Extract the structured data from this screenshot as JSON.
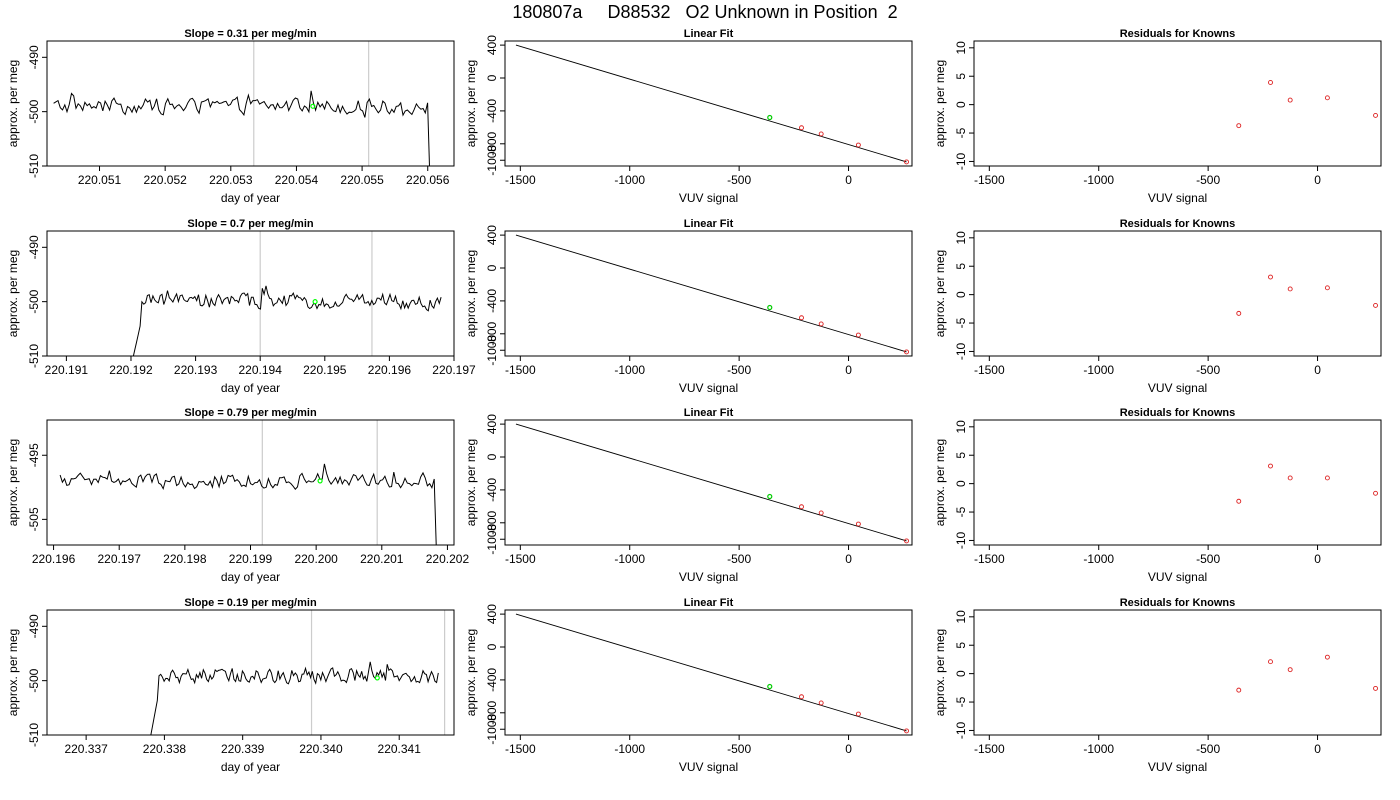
{
  "figure": {
    "title": "180807a     D88532   O2 Unknown in Position  2"
  },
  "chart_data": [
    {
      "type": "line",
      "row": 1,
      "title": "Slope =  0.31  per meg/min",
      "xlabel": "day of year",
      "ylabel": "approx. per meg",
      "xlim": [
        220.0502,
        220.0564
      ],
      "ylim": [
        -510,
        -487
      ],
      "xticks": [
        220.051,
        220.052,
        220.053,
        220.054,
        220.055,
        220.056
      ],
      "xtick_labels": [
        "220.051",
        "220.052",
        "220.053",
        "220.054",
        "220.055",
        "220.056"
      ],
      "yticks": [
        -510,
        -500,
        -490
      ],
      "ytick_labels": [
        "-510",
        "-500",
        "-490"
      ],
      "data_start": 220.0503,
      "data_end": 220.0561,
      "baseline": -499,
      "final_value": -512,
      "vlines": [
        220.05335,
        220.0551
      ],
      "marker": {
        "x": 220.05425,
        "y": -499,
        "color": "#00ff00"
      }
    },
    {
      "type": "scatter",
      "row": 1,
      "title": "Linear Fit",
      "xlabel": "VUV signal",
      "ylabel": "approx. per meg",
      "xlim": [
        -1570,
        290
      ],
      "ylim": [
        -1070,
        450
      ],
      "xticks": [
        -1500,
        -1000,
        -500,
        0
      ],
      "xtick_labels": [
        "-1500",
        "-1000",
        "-500",
        "0"
      ],
      "yticks": [
        -1000,
        -800,
        -400,
        0,
        400
      ],
      "ytick_labels": [
        "-1000",
        "-800",
        "-400",
        "0",
        "400"
      ],
      "line": {
        "x": [
          -1520,
          265
        ],
        "y": [
          400,
          -1020
        ]
      },
      "points": {
        "x": [
          -215,
          -125,
          45,
          265
        ],
        "y": [
          -605,
          -680,
          -815,
          -1020
        ],
        "color": "#dd2222"
      },
      "highlight": {
        "x": [
          -360
        ],
        "y": [
          -480
        ],
        "color": "#00cc00"
      }
    },
    {
      "type": "scatter",
      "row": 1,
      "title": "Residuals for Knowns",
      "xlabel": "VUV signal",
      "ylabel": "approx. per meg",
      "xlim": [
        -1570,
        290
      ],
      "ylim": [
        -10.8,
        11.2
      ],
      "xticks": [
        -1500,
        -1000,
        -500,
        0
      ],
      "xtick_labels": [
        "-1500",
        "-1000",
        "-500",
        "0"
      ],
      "yticks": [
        -10,
        -5,
        0,
        5,
        10
      ],
      "ytick_labels": [
        "-10",
        "-5",
        "0",
        "5",
        "10"
      ],
      "points": {
        "x": [
          -360,
          -215,
          -125,
          45,
          265
        ],
        "y": [
          -3.7,
          3.9,
          0.8,
          1.2,
          -1.9
        ],
        "color": "#dd2222"
      }
    },
    {
      "type": "line",
      "row": 2,
      "title": "Slope =  0.7  per meg/min",
      "xlabel": "day of year",
      "ylabel": "approx. per meg",
      "xlim": [
        220.1907,
        220.197
      ],
      "ylim": [
        -510,
        -487
      ],
      "xticks": [
        220.191,
        220.192,
        220.193,
        220.194,
        220.195,
        220.196,
        220.197
      ],
      "xtick_labels": [
        "220.191",
        "220.192",
        "220.193",
        "220.194",
        "220.195",
        "220.196",
        "220.197"
      ],
      "yticks": [
        -510,
        -500,
        -490
      ],
      "ytick_labels": [
        "-510",
        "-500",
        "-490"
      ],
      "data_start": 220.192,
      "data_end": 220.1968,
      "baseline": -500,
      "ramp_from": -512,
      "vlines": [
        220.194,
        220.19573
      ],
      "marker": {
        "x": 220.19485,
        "y": -500,
        "color": "#00ff00"
      }
    },
    {
      "type": "scatter",
      "row": 2,
      "title": "Linear Fit",
      "xlabel": "VUV signal",
      "ylabel": "approx. per meg",
      "xlim": [
        -1570,
        290
      ],
      "ylim": [
        -1070,
        450
      ],
      "xticks": [
        -1500,
        -1000,
        -500,
        0
      ],
      "xtick_labels": [
        "-1500",
        "-1000",
        "-500",
        "0"
      ],
      "yticks": [
        -1000,
        -800,
        -400,
        0,
        400
      ],
      "ytick_labels": [
        "-1000",
        "-800",
        "-400",
        "0",
        "400"
      ],
      "line": {
        "x": [
          -1520,
          265
        ],
        "y": [
          400,
          -1020
        ]
      },
      "points": {
        "x": [
          -215,
          -125,
          45,
          265
        ],
        "y": [
          -605,
          -680,
          -815,
          -1020
        ],
        "color": "#dd2222"
      },
      "highlight": {
        "x": [
          -360
        ],
        "y": [
          -480
        ],
        "color": "#00cc00"
      }
    },
    {
      "type": "scatter",
      "row": 2,
      "title": "Residuals for Knowns",
      "xlabel": "VUV signal",
      "ylabel": "approx. per meg",
      "xlim": [
        -1570,
        290
      ],
      "ylim": [
        -10.8,
        11.2
      ],
      "xticks": [
        -1500,
        -1000,
        -500,
        0
      ],
      "xtick_labels": [
        "-1500",
        "-1000",
        "-500",
        "0"
      ],
      "yticks": [
        -10,
        -5,
        0,
        5,
        10
      ],
      "ytick_labels": [
        "-10",
        "-5",
        "0",
        "5",
        "10"
      ],
      "points": {
        "x": [
          -360,
          -215,
          -125,
          45,
          265
        ],
        "y": [
          -3.3,
          3.1,
          1.0,
          1.2,
          -1.9
        ],
        "color": "#dd2222"
      }
    },
    {
      "type": "line",
      "row": 3,
      "title": "Slope =  0.79  per meg/min",
      "xlabel": "day of year",
      "ylabel": "approx. per meg",
      "xlim": [
        220.1959,
        220.2021
      ],
      "ylim": [
        -509,
        -489.5
      ],
      "xticks": [
        220.196,
        220.197,
        220.198,
        220.199,
        220.2,
        220.201,
        220.202
      ],
      "xtick_labels": [
        "220.196",
        "220.197",
        "220.198",
        "220.199",
        "220.200",
        "220.201",
        "220.202"
      ],
      "yticks": [
        -505,
        -495
      ],
      "ytick_labels": [
        "-505",
        "-495"
      ],
      "data_start": 220.1961,
      "data_end": 220.2019,
      "baseline": -499,
      "final_value": -510,
      "vlines": [
        220.19918,
        220.20093
      ],
      "marker": {
        "x": 220.20006,
        "y": -499,
        "color": "#00ff00"
      }
    },
    {
      "type": "scatter",
      "row": 3,
      "title": "Linear Fit",
      "xlabel": "VUV signal",
      "ylabel": "approx. per meg",
      "xlim": [
        -1570,
        290
      ],
      "ylim": [
        -1070,
        450
      ],
      "xticks": [
        -1500,
        -1000,
        -500,
        0
      ],
      "xtick_labels": [
        "-1500",
        "-1000",
        "-500",
        "0"
      ],
      "yticks": [
        -1000,
        -800,
        -400,
        0,
        400
      ],
      "ytick_labels": [
        "-1000",
        "-800",
        "-400",
        "0",
        "400"
      ],
      "line": {
        "x": [
          -1520,
          265
        ],
        "y": [
          400,
          -1020
        ]
      },
      "points": {
        "x": [
          -215,
          -125,
          45,
          265
        ],
        "y": [
          -605,
          -680,
          -815,
          -1020
        ],
        "color": "#dd2222"
      },
      "highlight": {
        "x": [
          -360
        ],
        "y": [
          -480
        ],
        "color": "#00cc00"
      }
    },
    {
      "type": "scatter",
      "row": 3,
      "title": "Residuals for Knowns",
      "xlabel": "VUV signal",
      "ylabel": "approx. per meg",
      "xlim": [
        -1570,
        290
      ],
      "ylim": [
        -10.8,
        11.2
      ],
      "xticks": [
        -1500,
        -1000,
        -500,
        0
      ],
      "xtick_labels": [
        "-1500",
        "-1000",
        "-500",
        "0"
      ],
      "yticks": [
        -10,
        -5,
        0,
        5,
        10
      ],
      "ytick_labels": [
        "-10",
        "-5",
        "0",
        "5",
        "10"
      ],
      "points": {
        "x": [
          -360,
          -215,
          -125,
          45,
          265
        ],
        "y": [
          -3.1,
          3.1,
          1.0,
          1.0,
          -1.7
        ],
        "color": "#dd2222"
      }
    },
    {
      "type": "line",
      "row": 4,
      "title": "Slope =  0.19  per meg/min",
      "xlabel": "day of year",
      "ylabel": "approx. per meg",
      "xlim": [
        220.3365,
        220.3417
      ],
      "ylim": [
        -510,
        -487
      ],
      "xticks": [
        220.337,
        220.338,
        220.339,
        220.34,
        220.341
      ],
      "xtick_labels": [
        "220.337",
        "220.338",
        "220.339",
        "220.340",
        "220.341"
      ],
      "yticks": [
        -510,
        -500,
        -490
      ],
      "ytick_labels": [
        "-510",
        "-500",
        "-490"
      ],
      "data_start": 220.3378,
      "data_end": 220.3415,
      "baseline": -499,
      "ramp_from": -512,
      "vlines": [
        220.33988,
        220.34158
      ],
      "marker": {
        "x": 220.34072,
        "y": -499.5,
        "color": "#00ff00"
      }
    },
    {
      "type": "scatter",
      "row": 4,
      "title": "Linear Fit",
      "xlabel": "VUV signal",
      "ylabel": "approx. per meg",
      "xlim": [
        -1570,
        290
      ],
      "ylim": [
        -1070,
        450
      ],
      "xticks": [
        -1500,
        -1000,
        -500,
        0
      ],
      "xtick_labels": [
        "-1500",
        "-1000",
        "-500",
        "0"
      ],
      "yticks": [
        -1000,
        -800,
        -400,
        0,
        400
      ],
      "ytick_labels": [
        "-1000",
        "-800",
        "-400",
        "0",
        "400"
      ],
      "line": {
        "x": [
          -1520,
          265
        ],
        "y": [
          400,
          -1020
        ]
      },
      "points": {
        "x": [
          -215,
          -125,
          45,
          265
        ],
        "y": [
          -605,
          -680,
          -815,
          -1020
        ],
        "color": "#dd2222"
      },
      "highlight": {
        "x": [
          -360
        ],
        "y": [
          -480
        ],
        "color": "#00cc00"
      }
    },
    {
      "type": "scatter",
      "row": 4,
      "title": "Residuals for Knowns",
      "xlabel": "VUV signal",
      "ylabel": "approx. per meg",
      "xlim": [
        -1570,
        290
      ],
      "ylim": [
        -10.8,
        11.2
      ],
      "xticks": [
        -1500,
        -1000,
        -500,
        0
      ],
      "xtick_labels": [
        "-1500",
        "-1000",
        "-500",
        "0"
      ],
      "yticks": [
        -10,
        -5,
        0,
        5,
        10
      ],
      "ytick_labels": [
        "-10",
        "-5",
        "0",
        "5",
        "10"
      ],
      "points": {
        "x": [
          -360,
          -215,
          -125,
          45,
          265
        ],
        "y": [
          -2.9,
          2.1,
          0.7,
          2.9,
          -2.6
        ],
        "color": "#dd2222"
      }
    }
  ]
}
